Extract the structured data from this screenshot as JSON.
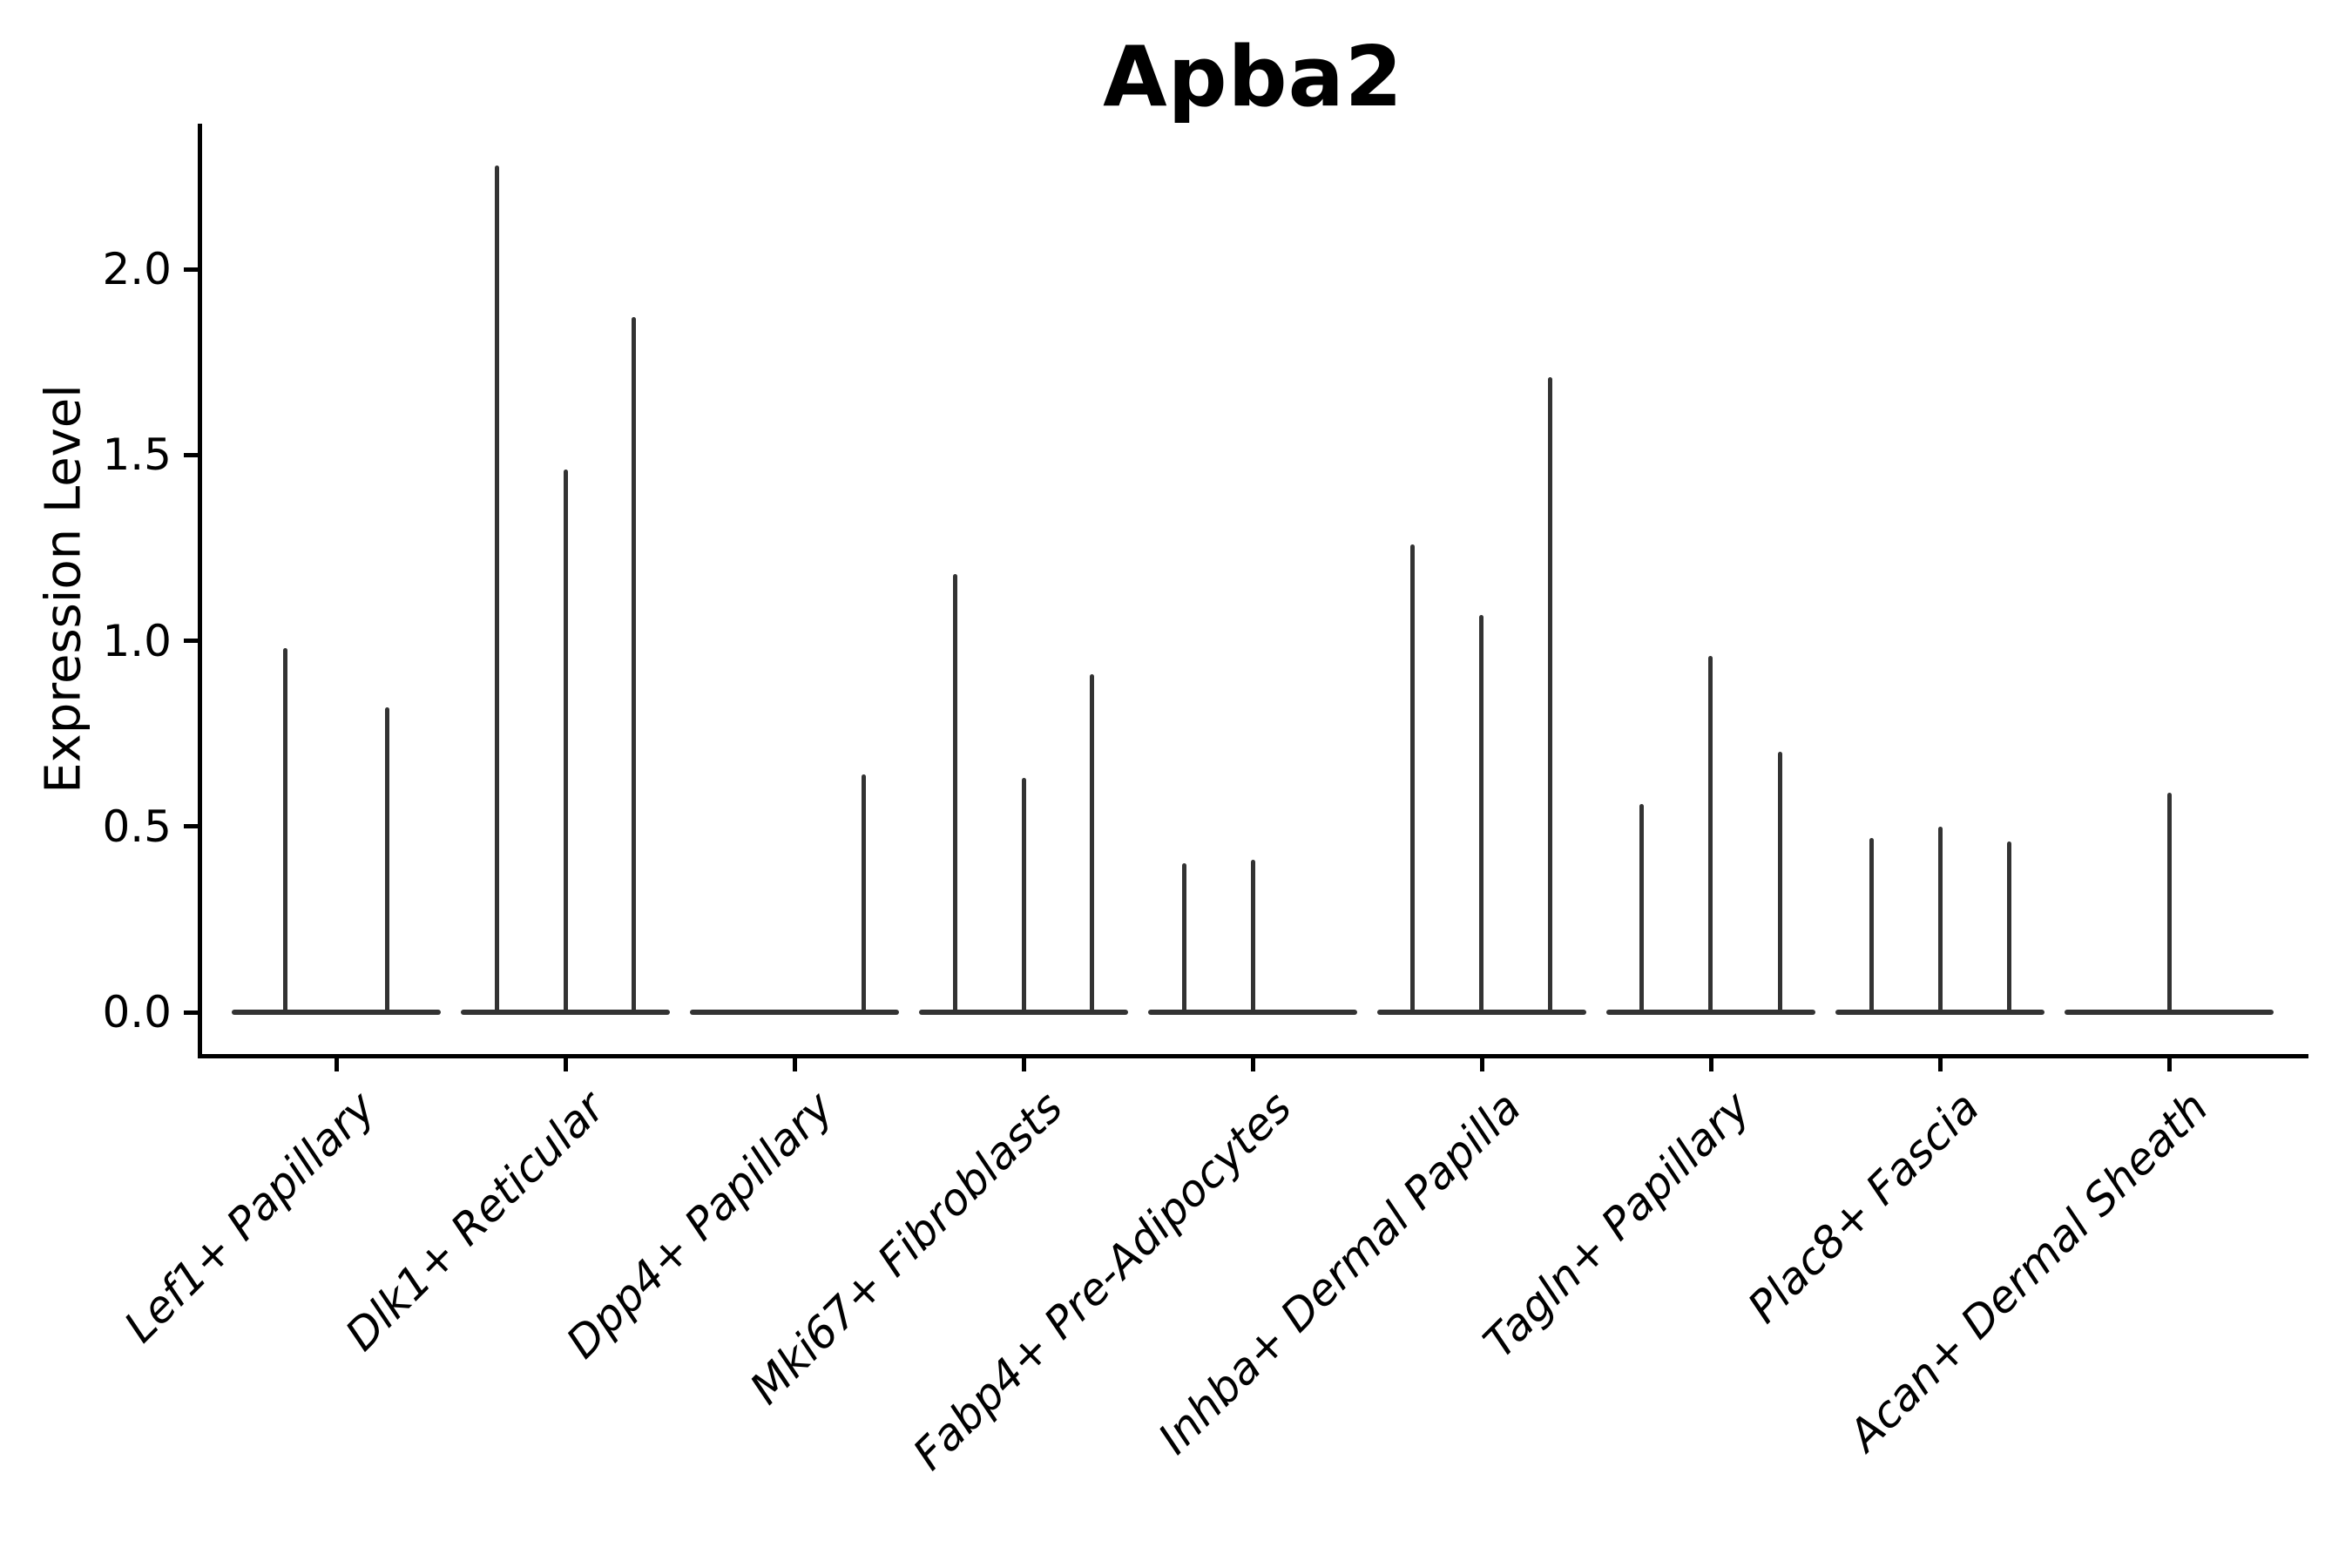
{
  "figure": {
    "title": "Apba2",
    "ylabel": "Expression Level",
    "background_color": "#ffffff",
    "axis_color": "#000000",
    "violin_color": "#333333"
  },
  "chart_data": {
    "type": "violin",
    "title": "Apba2",
    "xlabel": "",
    "ylabel": "Expression Level",
    "ylim": [
      -0.11,
      2.39
    ],
    "yticks": [
      0.0,
      0.5,
      1.0,
      1.5,
      2.0
    ],
    "ytick_labels": [
      "0.0",
      "0.5",
      "1.0",
      "1.5",
      "2.0"
    ],
    "grid": false,
    "legend": false,
    "categories": [
      "Lef1+ Papillary",
      "Dlk1+ Reticular",
      "Dpp4+ Papillary",
      "Mki67+ Fibroblasts",
      "Fabp4+ Pre-Adipocytes",
      "Inhba+ Dermal Papilla",
      "Tagln+ Papillary",
      "Plac8+ Fascia",
      "Acan+ Dermal Sheath"
    ],
    "groups": [
      {
        "category": "Lef1+ Papillary",
        "violins": [
          {
            "offset": -59,
            "max": 0.98
          },
          {
            "offset": 58,
            "max": 0.82
          }
        ]
      },
      {
        "category": "Dlk1+ Reticular",
        "violins": [
          {
            "offset": -79,
            "max": 2.28
          },
          {
            "offset": 0,
            "max": 1.46
          },
          {
            "offset": 78,
            "max": 1.87
          }
        ]
      },
      {
        "category": "Dpp4+ Papillary",
        "violins": [
          {
            "offset": 79,
            "max": 0.64
          }
        ]
      },
      {
        "category": "Mki67+ Fibroblasts",
        "violins": [
          {
            "offset": -79,
            "max": 1.18
          },
          {
            "offset": 0,
            "max": 0.63
          },
          {
            "offset": 78,
            "max": 0.91
          }
        ]
      },
      {
        "category": "Fabp4+ Pre-Adipocytes",
        "violins": [
          {
            "offset": -79,
            "max": 0.4
          },
          {
            "offset": 0,
            "max": 0.41
          }
        ]
      },
      {
        "category": "Inhba+ Dermal Papilla",
        "violins": [
          {
            "offset": -80,
            "max": 1.26
          },
          {
            "offset": -1,
            "max": 1.07
          },
          {
            "offset": 78,
            "max": 1.71
          }
        ]
      },
      {
        "category": "Tagln+ Papillary",
        "violins": [
          {
            "offset": -80,
            "max": 0.56
          },
          {
            "offset": -1,
            "max": 0.96
          },
          {
            "offset": 79,
            "max": 0.7
          }
        ]
      },
      {
        "category": "Plac8+ Fascia",
        "violins": [
          {
            "offset": -79,
            "max": 0.47
          },
          {
            "offset": 0,
            "max": 0.5
          },
          {
            "offset": 79,
            "max": 0.46
          }
        ]
      },
      {
        "category": "Acan+ Dermal Sheath",
        "violins": [
          {
            "offset": 0,
            "max": 0.59
          }
        ]
      }
    ]
  }
}
